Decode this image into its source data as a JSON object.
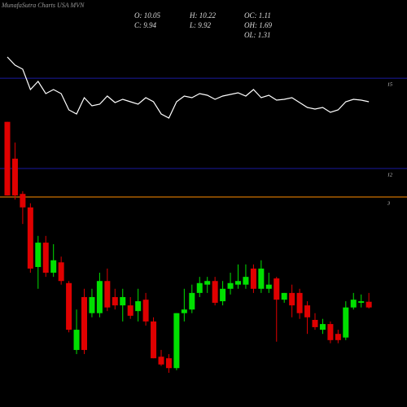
{
  "chart_data": {
    "type": "candlestick",
    "title": "MunafaSutra Charts USA MVN",
    "info": [
      "O: 10.05",
      "H: 10.22",
      "OC: 1.11",
      "C: 9.94",
      "L: 9.92",
      "OH: 1.69",
      "OL: 1.31"
    ],
    "ylim": [
      8.02,
      15.87
    ],
    "up_color": "#00e000",
    "down_color": "#e00000",
    "hlines": [
      {
        "value": 14.36,
        "color": "#1a1aa0",
        "label": "15"
      },
      {
        "value": 12.62,
        "color": "#1a1aa0",
        "label": "12"
      },
      {
        "value": 12.07,
        "color": "#ff8c00",
        "label": "3"
      }
    ],
    "open": [
      13.52,
      12.81,
      12.13,
      11.87,
      10.72,
      11.19,
      10.61,
      10.81,
      10.41,
      9.12,
      10.14,
      9.83,
      9.83,
      10.45,
      10.14,
      9.98,
      9.98,
      9.87,
      10.09,
      9.67,
      8.99,
      8.96,
      8.77,
      9.83,
      9.9,
      10.22,
      10.38,
      10.45,
      10.06,
      10.3,
      10.38,
      10.38,
      10.69,
      10.3,
      10.3,
      10.5,
      10.09,
      10.22,
      10.22,
      9.98,
      9.7,
      9.51,
      9.62,
      9.43,
      9.36,
      9.94,
      10.03,
      10.05
    ],
    "high": [
      13.52,
      13.12,
      12.18,
      11.95,
      11.32,
      11.32,
      11.16,
      10.92,
      10.45,
      9.9,
      10.3,
      10.3,
      10.61,
      10.69,
      10.3,
      10.3,
      10.14,
      10.3,
      10.22,
      9.75,
      9.12,
      9.04,
      9.83,
      10.3,
      10.38,
      10.53,
      10.53,
      10.53,
      10.45,
      10.61,
      10.77,
      10.77,
      10.77,
      10.85,
      10.61,
      10.53,
      10.22,
      10.38,
      10.3,
      10.06,
      9.83,
      9.72,
      9.67,
      9.51,
      10.06,
      10.22,
      10.19,
      10.22
    ],
    "low": [
      12.1,
      12.02,
      11.55,
      10.61,
      10.3,
      10.53,
      10.53,
      10.38,
      9.46,
      9.04,
      9.04,
      9.75,
      9.75,
      9.87,
      9.9,
      9.67,
      9.72,
      9.67,
      9.59,
      8.96,
      8.81,
      8.68,
      8.73,
      9.67,
      9.83,
      10.14,
      10.22,
      9.98,
      9.98,
      10.19,
      10.3,
      10.3,
      10.22,
      10.22,
      10.22,
      9.28,
      10.03,
      9.75,
      9.72,
      9.43,
      9.51,
      9.43,
      9.25,
      9.25,
      9.31,
      9.9,
      9.94,
      9.92
    ],
    "close": [
      12.1,
      12.1,
      11.87,
      10.69,
      11.19,
      10.61,
      10.85,
      10.45,
      9.51,
      9.51,
      9.12,
      10.14,
      10.45,
      9.94,
      9.98,
      10.14,
      9.78,
      10.06,
      9.67,
      8.96,
      8.84,
      8.77,
      9.83,
      9.9,
      10.22,
      10.41,
      10.45,
      10.03,
      10.3,
      10.41,
      10.45,
      10.53,
      10.3,
      10.69,
      10.38,
      10.09,
      10.22,
      9.98,
      9.83,
      9.75,
      9.56,
      9.62,
      9.31,
      9.31,
      9.94,
      10.09,
      10.06,
      9.94
    ],
    "indicator": {
      "color": "#ffffff",
      "ylim": [
        0,
        100
      ],
      "values": [
        86,
        84,
        83,
        78,
        80,
        77,
        78,
        77,
        73,
        72,
        76,
        74,
        74.4,
        76.4,
        74.8,
        75.6,
        75,
        74.4,
        76,
        75,
        72,
        71,
        75,
        76.4,
        76,
        77,
        76.6,
        75.6,
        76.4,
        76.8,
        77.2,
        76.4,
        78,
        76,
        76.6,
        75.4,
        75.6,
        76,
        74.8,
        73.6,
        73.2,
        73.6,
        72.4,
        73,
        75,
        75.6,
        75.4,
        75
      ]
    }
  }
}
